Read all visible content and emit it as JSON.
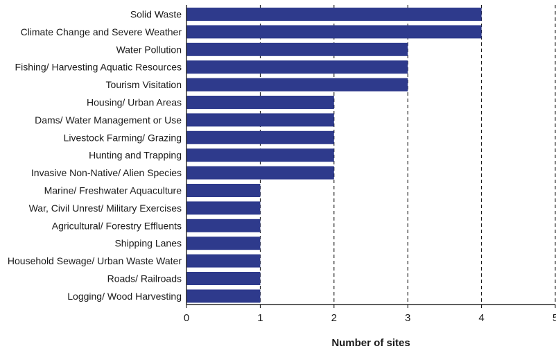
{
  "chart_data": {
    "type": "bar",
    "orientation": "horizontal",
    "categories": [
      "Solid Waste",
      "Climate Change and Severe Weather",
      "Water Pollution",
      "Fishing/ Harvesting Aquatic Resources",
      "Tourism Visitation",
      "Housing/ Urban Areas",
      "Dams/ Water Management or Use",
      "Livestock Farming/ Grazing",
      "Hunting and Trapping",
      "Invasive Non-Native/ Alien Species",
      "Marine/ Freshwater Aquaculture",
      "War, Civil Unrest/ Military Exercises",
      "Agricultural/ Forestry Effluents",
      "Shipping Lanes",
      "Household Sewage/ Urban Waste Water",
      "Roads/ Railroads",
      "Logging/ Wood Harvesting"
    ],
    "values": [
      4,
      4,
      3,
      3,
      3,
      2,
      2,
      2,
      2,
      2,
      1,
      1,
      1,
      1,
      1,
      1,
      1
    ],
    "xlabel": "Number of sites",
    "ylabel": "",
    "xlim": [
      0,
      5
    ],
    "xticks": [
      "0",
      "1",
      "2",
      "3",
      "4",
      "5"
    ],
    "grid": "vertical dashed",
    "bar_color": "#2e3a8c",
    "legend": "none"
  }
}
